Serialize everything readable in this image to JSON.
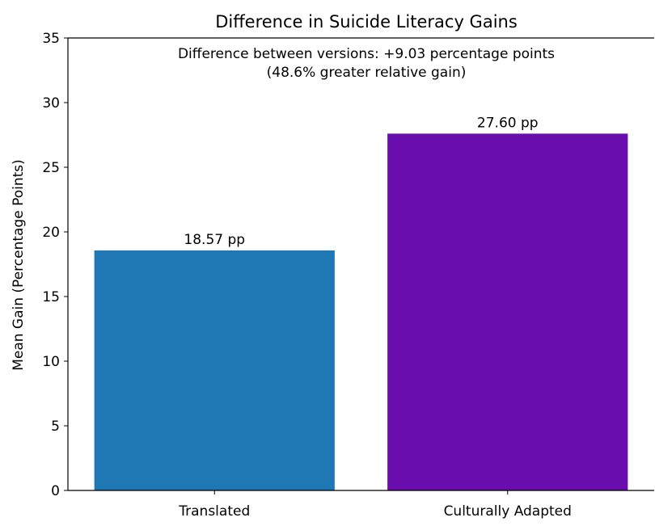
{
  "chart_data": {
    "type": "bar",
    "title": "Difference in Suicide Literacy Gains",
    "xlabel": "",
    "ylabel": "Mean Gain (Percentage Points)",
    "categories": [
      "Translated",
      "Culturally Adapted"
    ],
    "values": [
      18.57,
      27.6
    ],
    "value_labels": [
      "18.57 pp",
      "27.60 pp"
    ],
    "bar_colors": [
      "#1f77b4",
      "#6a0dad"
    ],
    "ylim": [
      0,
      35
    ],
    "yticks": [
      0,
      5,
      10,
      15,
      20,
      25,
      30,
      35
    ],
    "grid": false,
    "annotation": {
      "line1": "Difference between versions: +9.03 percentage points",
      "line2": "(48.6% greater relative gain)"
    }
  }
}
